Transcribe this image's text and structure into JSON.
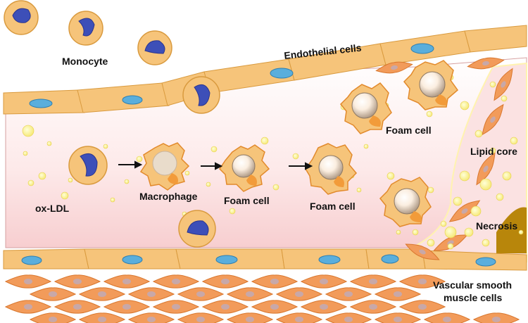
{
  "labels": {
    "monocyte": "Monocyte",
    "endothelial": "Endothelial cells",
    "foam_cell_top": "Foam cell",
    "lipid_core": "Lipid core",
    "necrosis": "Necrosis",
    "ox_ldl": "ox-LDL",
    "macrophage": "Macrophage",
    "foam_cell_1": "Foam cell",
    "foam_cell_2": "Foam cell",
    "vsmc_line1": "Vascular smooth",
    "vsmc_line2": "muscle cells"
  },
  "colors": {
    "endothelium_fill": "#f6c47a",
    "endothelium_stroke": "#d99a3e",
    "nucleus_blue": "#5aaedc",
    "monocyte_nucleus": "#3d4fb8",
    "lumen_pink": "#f8d7d7",
    "smc_fill": "#f29b5a",
    "smc_nucleus": "#c8a8a8",
    "lipid_yellow": "#fff19a",
    "necrosis": "#b8860b"
  }
}
